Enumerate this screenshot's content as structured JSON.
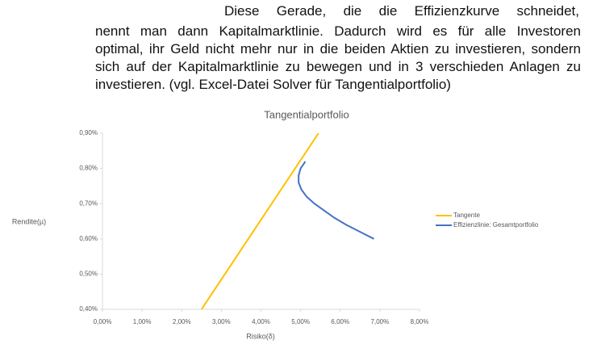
{
  "text_lines": [
    "Diese Gerade, die die Effizienzkurve schneidet,",
    "nennt man dann Kapitalmarktlinie. Dadurch wird es für alle Investoren",
    "optimal, ihr Geld nicht mehr nur in die beiden Aktien zu investieren, sondern",
    "sich auf der Kapitalmarktlinie zu bewegen und in 3 verschieden Anlagen zu",
    "investieren. (vgl. Excel-Datei Solver für Tangentialportfolio)"
  ],
  "chart_data": {
    "type": "line",
    "title": "Tangentialportfolio",
    "x_label": "Risiko(δ)",
    "y_label": "Rendite(µ)",
    "xlim": [
      0,
      8
    ],
    "ylim": [
      0.4,
      0.9
    ],
    "xticks": [
      {
        "value": 0,
        "label": "0,00%"
      },
      {
        "value": 1,
        "label": "1,00%"
      },
      {
        "value": 2,
        "label": "2,00%"
      },
      {
        "value": 3,
        "label": "3,00%"
      },
      {
        "value": 4,
        "label": "4,00%"
      },
      {
        "value": 5,
        "label": "5,00%"
      },
      {
        "value": 6,
        "label": "6,00%"
      },
      {
        "value": 7,
        "label": "7,00%"
      },
      {
        "value": 8,
        "label": "8,00%"
      }
    ],
    "yticks": [
      {
        "value": 0.4,
        "label": "0,40%"
      },
      {
        "value": 0.5,
        "label": "0,50%"
      },
      {
        "value": 0.6,
        "label": "0,60%"
      },
      {
        "value": 0.7,
        "label": "0,70%"
      },
      {
        "value": 0.8,
        "label": "0,80%"
      },
      {
        "value": 0.9,
        "label": "0,90%"
      }
    ],
    "grid": false,
    "legend": "right",
    "series": [
      {
        "name": "Tangente",
        "color": "#ffc000",
        "x": [
          2.5,
          5.45
        ],
        "values": [
          0.4,
          0.9
        ]
      },
      {
        "name": "Effizienzlinie: Gesamtportfolio",
        "color": "#4472c4",
        "x": [
          5.12,
          5.0,
          4.95,
          4.95,
          5.02,
          5.15,
          5.35,
          5.6,
          5.85,
          6.15,
          6.5,
          6.85
        ],
        "values": [
          0.82,
          0.8,
          0.78,
          0.76,
          0.74,
          0.72,
          0.7,
          0.68,
          0.66,
          0.64,
          0.62,
          0.6
        ]
      }
    ]
  }
}
